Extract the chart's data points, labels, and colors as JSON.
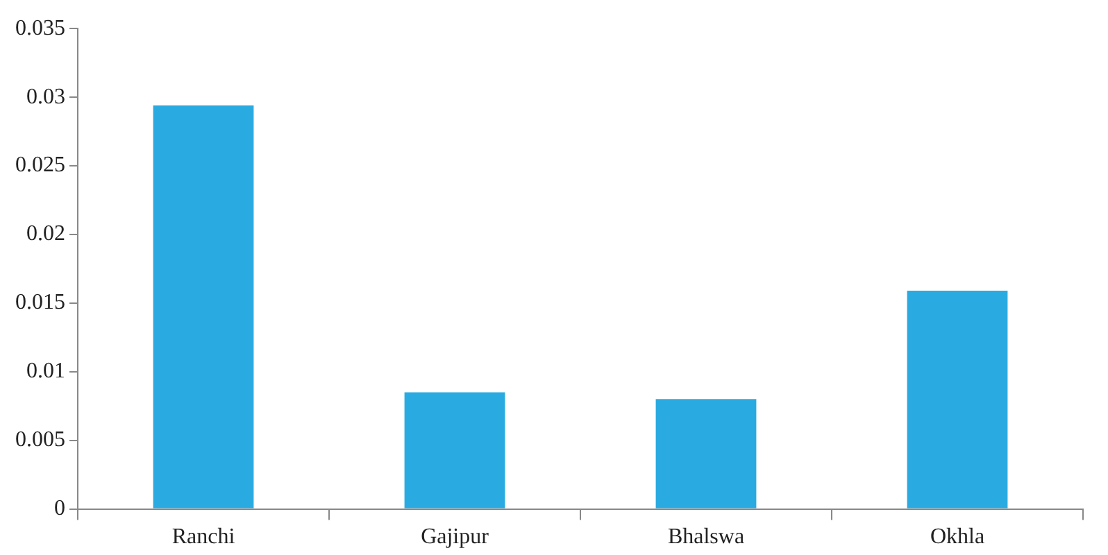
{
  "chart_data": {
    "type": "bar",
    "categories": [
      "Ranchi",
      "Gajipur",
      "Bhalswa",
      "Okhla"
    ],
    "values": [
      0.0294,
      0.0085,
      0.008,
      0.0159
    ],
    "color": "#29abe2",
    "ylim": [
      0,
      0.035
    ],
    "yticks": [
      0,
      0.005,
      0.01,
      0.015,
      0.02,
      0.025,
      0.03,
      0.035
    ],
    "grid": false
  }
}
